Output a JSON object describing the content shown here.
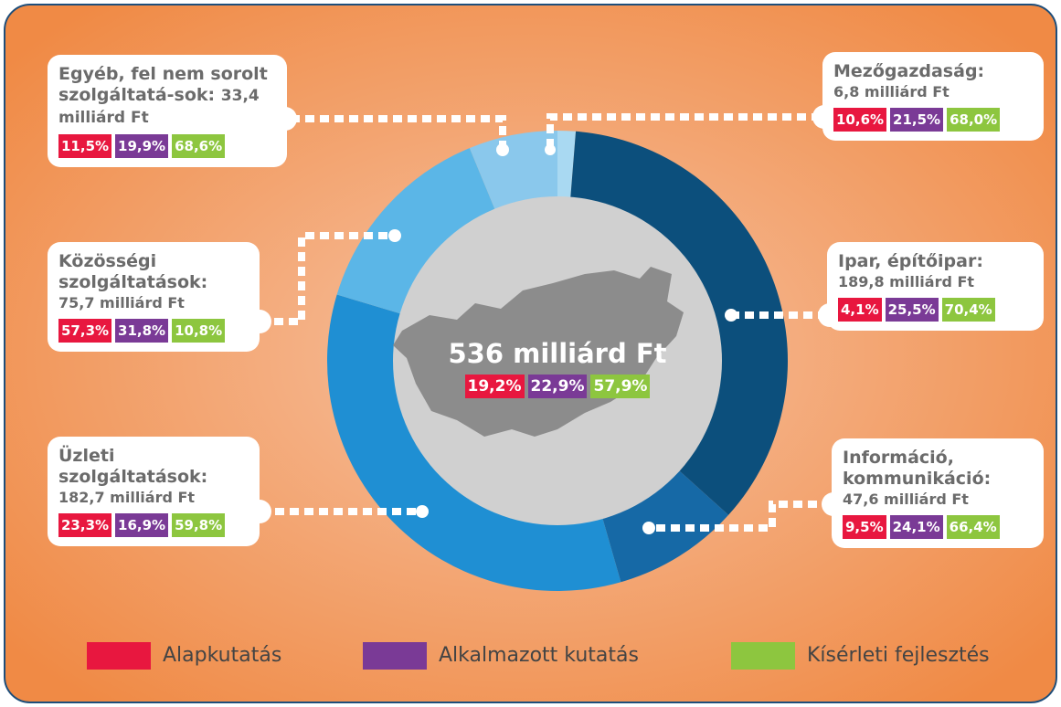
{
  "chart_data": {
    "type": "donut",
    "total": 536,
    "total_label": "536 milliárd Ft",
    "categories": [
      "Mezőgazdaság:",
      "Ipar, építőipar:",
      "Információ, kommunikáció:",
      "Üzleti szolgáltatások:",
      "Közösségi szolgáltatások:",
      "Egyéb, fel nem sorolt szolgáltatá-sok:"
    ],
    "values": [
      6.8,
      189.8,
      47.6,
      182.7,
      75.7,
      33.4
    ],
    "value_labels": [
      "6,8 milliárd Ft",
      "189,8  milliárd Ft",
      "47,6 milliárd Ft",
      "182,7  milliárd Ft",
      "75,7  milliárd Ft",
      "33,4  milliárd Ft"
    ],
    "colors": [
      "#a9d9f2",
      "#0c4f7c",
      "#1669a6",
      "#1f8fd3",
      "#5bb6e7",
      "#8ac8ec"
    ],
    "series": [
      {
        "name": "Alapkutatás",
        "color": "#e8173f",
        "values": [
          10.6,
          4.1,
          9.5,
          23.3,
          57.3,
          11.5
        ],
        "value_labels": [
          "10,6%",
          "4,1%",
          "9,5%",
          "23,3%",
          "57,3%",
          "11,5%"
        ],
        "total": 19.2,
        "total_label": "19,2%"
      },
      {
        "name": "Alkalmazott kutatás",
        "color": "#7a3a96",
        "values": [
          21.5,
          25.5,
          24.1,
          16.9,
          31.8,
          19.9
        ],
        "value_labels": [
          "21,5%",
          "25,5%",
          "24,1%",
          "16,9%",
          "31,8%",
          "19,9%"
        ],
        "total": 22.9,
        "total_label": "22,9%"
      },
      {
        "name": "Kísérleti fejlesztés",
        "color": "#8dc63f",
        "values": [
          68.0,
          70.4,
          66.4,
          59.8,
          10.8,
          68.6
        ],
        "value_labels": [
          "68,0%",
          "70,4%",
          "66,4%",
          "59,8%",
          "10,8%",
          "68,6%"
        ],
        "total": 57.9,
        "total_label": "57,9%"
      }
    ]
  }
}
